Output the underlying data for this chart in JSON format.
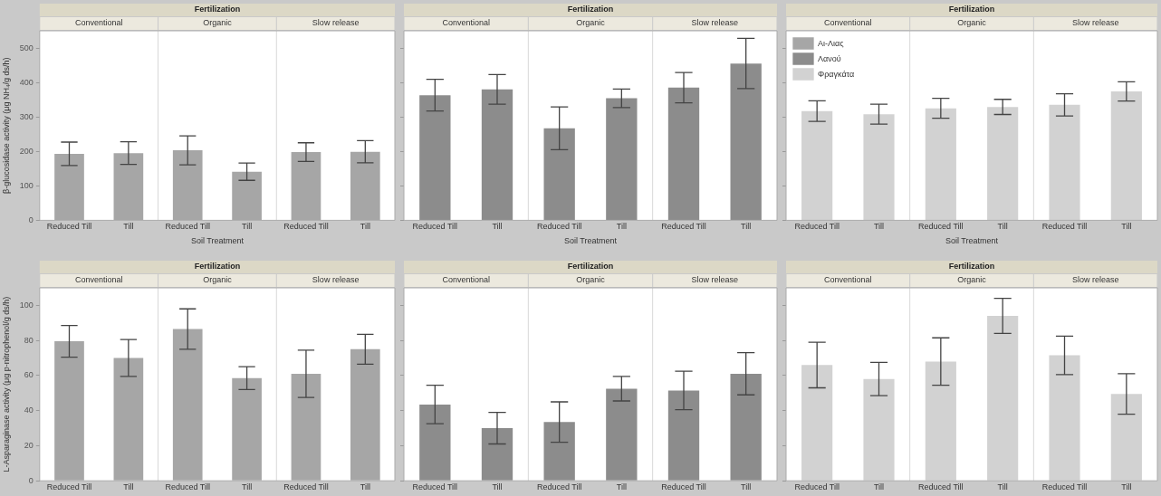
{
  "chart_data": [
    {
      "type": "bar",
      "title": "Fertilization",
      "xlabel": "Soil Treatment",
      "ylabel": "β-glucosidase activity (μg NH₄/g ds/h)",
      "categories": [
        "Reduced Till",
        "Till",
        "Reduced Till",
        "Till",
        "Reduced Till",
        "Till"
      ],
      "annotations": [
        "Conventional",
        "Organic",
        "Slow release"
      ],
      "ylim": [
        0,
        550
      ],
      "yticks": [
        0,
        100,
        200,
        300,
        400,
        500
      ],
      "series": [
        {
          "color": "#a6a6a6",
          "values": [
            193,
            195,
            203,
            141,
            198,
            199
          ],
          "errors": [
            34,
            33,
            42,
            25,
            27,
            32
          ]
        },
        {
          "color": "#8c8c8c",
          "values": [
            null,
            null,
            null,
            null,
            null,
            null
          ]
        },
        {
          "color": "#d2d2d2",
          "values": [
            null,
            null,
            null,
            null,
            null,
            null
          ]
        }
      ]
    },
    {
      "type": "bar",
      "title": "Fertilization",
      "xlabel": "Soil Treatment",
      "categories": [
        "Reduced Till",
        "Till",
        "Reduced Till",
        "Till",
        "Reduced Till",
        "Till"
      ],
      "annotations": [
        "Conventional",
        "Organic",
        "Slow release"
      ],
      "ylim": [
        0,
        550
      ],
      "yticks": [
        0,
        100,
        200,
        300,
        400,
        500
      ],
      "tick_labels": "x",
      "series": [
        {
          "color": "#a6a6a6",
          "values": [
            null,
            null,
            null,
            null,
            null,
            null
          ]
        },
        {
          "color": "#8c8c8c",
          "values": [
            363,
            380,
            267,
            354,
            385,
            455
          ],
          "errors": [
            46,
            43,
            62,
            27,
            44,
            73
          ]
        },
        {
          "color": "#d2d2d2",
          "values": [
            null,
            null,
            null,
            null,
            null,
            null
          ]
        }
      ]
    },
    {
      "type": "bar",
      "title": "Fertilization",
      "xlabel": "Soil Treatment",
      "categories": [
        "Reduced Till",
        "Till",
        "Reduced Till",
        "Till",
        "Reduced Till",
        "Till"
      ],
      "annotations": [
        "Conventional",
        "Organic",
        "Slow release"
      ],
      "ylim": [
        0,
        550
      ],
      "yticks": [
        0,
        100,
        200,
        300,
        400,
        500
      ],
      "tick_labels": "x",
      "legend": "top left",
      "series": [
        {
          "name": "Αι-Λιας",
          "color": "#a6a6a6",
          "values": [
            null,
            null,
            null,
            null,
            null,
            null
          ]
        },
        {
          "name": "Λανού",
          "color": "#8c8c8c",
          "values": [
            null,
            null,
            null,
            null,
            null,
            null
          ]
        },
        {
          "name": "Φραγκάτα",
          "color": "#d2d2d2",
          "values": [
            317,
            308,
            325,
            329,
            335,
            374
          ],
          "errors": [
            30,
            29,
            29,
            22,
            32,
            28
          ]
        }
      ]
    },
    {
      "type": "bar",
      "title": "Fertilization",
      "ylabel": "L-Asparaginase activity (μg p-nitrophenol/g ds/h)",
      "categories": [
        "Reduced Till",
        "Till",
        "Reduced Till",
        "Till",
        "Reduced Till",
        "Till"
      ],
      "annotations": [
        "Conventional",
        "Organic",
        "Slow release"
      ],
      "ylim": [
        0,
        110
      ],
      "yticks": [
        0,
        20,
        40,
        60,
        80,
        100
      ],
      "series": [
        {
          "color": "#a6a6a6",
          "values": [
            79.5,
            70,
            86.5,
            58.5,
            61,
            75
          ],
          "errors": [
            9,
            10.5,
            11.5,
            6.5,
            13.5,
            8.5
          ]
        },
        {
          "color": "#8c8c8c",
          "values": [
            null,
            null,
            null,
            null,
            null,
            null
          ]
        },
        {
          "color": "#d2d2d2",
          "values": [
            null,
            null,
            null,
            null,
            null,
            null
          ]
        }
      ]
    },
    {
      "type": "bar",
      "title": "Fertilization",
      "categories": [
        "Reduced Till",
        "Till",
        "Reduced Till",
        "Till",
        "Reduced Till",
        "Till"
      ],
      "annotations": [
        "Conventional",
        "Organic",
        "Slow release"
      ],
      "ylim": [
        0,
        110
      ],
      "yticks": [
        0,
        20,
        40,
        60,
        80,
        100
      ],
      "tick_labels": "x",
      "series": [
        {
          "color": "#a6a6a6",
          "values": [
            null,
            null,
            null,
            null,
            null,
            null
          ]
        },
        {
          "color": "#8c8c8c",
          "values": [
            43.5,
            30,
            33.5,
            52.5,
            51.5,
            61
          ],
          "errors": [
            11,
            9,
            11.5,
            7,
            11,
            12
          ]
        },
        {
          "color": "#d2d2d2",
          "values": [
            null,
            null,
            null,
            null,
            null,
            null
          ]
        }
      ]
    },
    {
      "type": "bar",
      "title": "Fertilization",
      "categories": [
        "Reduced Till",
        "Till",
        "Reduced Till",
        "Till",
        "Reduced Till",
        "Till"
      ],
      "annotations": [
        "Conventional",
        "Organic",
        "Slow release"
      ],
      "ylim": [
        0,
        110
      ],
      "yticks": [
        0,
        20,
        40,
        60,
        80,
        100
      ],
      "tick_labels": "x",
      "series": [
        {
          "color": "#a6a6a6",
          "values": [
            null,
            null,
            null,
            null,
            null,
            null
          ]
        },
        {
          "color": "#8c8c8c",
          "values": [
            null,
            null,
            null,
            null,
            null,
            null
          ]
        },
        {
          "color": "#d2d2d2",
          "values": [
            66,
            58,
            68,
            94,
            71.5,
            49.5
          ],
          "errors": [
            13,
            9.5,
            13.5,
            10,
            11,
            11.5
          ]
        }
      ]
    }
  ]
}
